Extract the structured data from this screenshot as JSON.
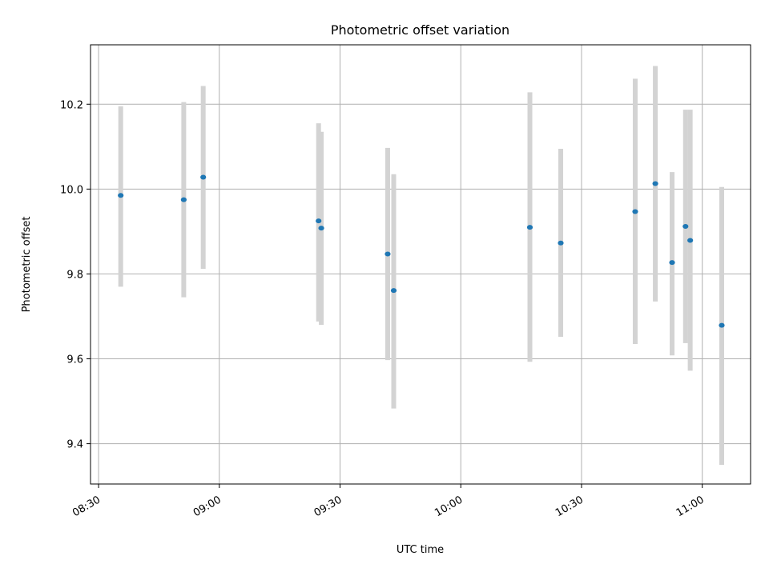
{
  "chart_data": {
    "type": "scatter",
    "title": "Photometric offset variation",
    "xlabel": "UTC time",
    "ylabel": "Photometric offset",
    "x_ticks": [
      "08:30",
      "09:00",
      "09:30",
      "10:00",
      "10:30",
      "11:00"
    ],
    "y_ticks": [
      "9.4",
      "9.6",
      "9.8",
      "10.0",
      "10.2"
    ],
    "xlim": [
      "08:28",
      "11:12"
    ],
    "ylim": [
      9.305,
      10.34
    ],
    "grid": true,
    "errorbar_color": "#d3d3d3",
    "marker_color": "#1f77b4",
    "series": [
      {
        "points": [
          {
            "x": "08:35:30",
            "y": 9.985,
            "low": 9.77,
            "high": 10.195
          },
          {
            "x": "08:51:10",
            "y": 9.975,
            "low": 9.745,
            "high": 10.205
          },
          {
            "x": "08:56:00",
            "y": 10.028,
            "low": 9.812,
            "high": 10.243
          },
          {
            "x": "09:24:40",
            "y": 9.925,
            "low": 9.688,
            "high": 10.155
          },
          {
            "x": "09:25:20",
            "y": 9.908,
            "low": 9.68,
            "high": 10.135
          },
          {
            "x": "09:41:50",
            "y": 9.847,
            "low": 9.597,
            "high": 10.097
          },
          {
            "x": "09:43:20",
            "y": 9.761,
            "low": 9.483,
            "high": 10.035
          },
          {
            "x": "10:17:10",
            "y": 9.91,
            "low": 9.593,
            "high": 10.228
          },
          {
            "x": "10:24:50",
            "y": 9.873,
            "low": 9.652,
            "high": 10.095
          },
          {
            "x": "10:43:20",
            "y": 9.947,
            "low": 9.635,
            "high": 10.26
          },
          {
            "x": "10:48:20",
            "y": 10.013,
            "low": 9.735,
            "high": 10.29
          },
          {
            "x": "10:52:30",
            "y": 9.827,
            "low": 9.608,
            "high": 10.04
          },
          {
            "x": "10:55:50",
            "y": 9.912,
            "low": 9.637,
            "high": 10.187
          },
          {
            "x": "10:57:00",
            "y": 9.879,
            "low": 9.572,
            "high": 10.187
          },
          {
            "x": "11:04:50",
            "y": 9.679,
            "low": 9.35,
            "high": 10.005
          }
        ]
      }
    ]
  }
}
